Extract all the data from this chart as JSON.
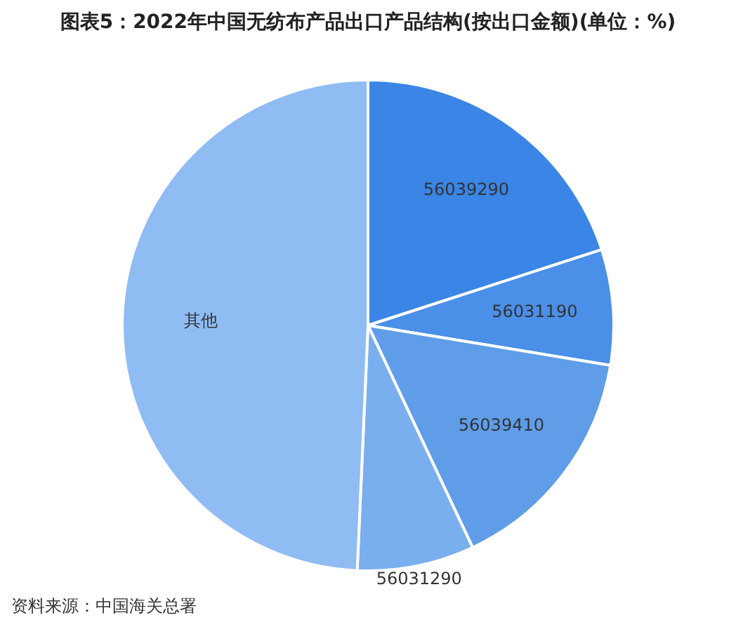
{
  "chart_data": {
    "type": "pie",
    "title": "图表5：2022年中国无纺布产品出口产品结构(按出口金额)(单位：%)",
    "categories": [
      "56039290",
      "56031190",
      "56039410",
      "56031290",
      "其他"
    ],
    "values": [
      20,
      7.6,
      15.4,
      7.7,
      49.3
    ],
    "colors": [
      "#3a85e6",
      "#4a8fe8",
      "#5f9de9",
      "#7aafef",
      "#90bcf4"
    ],
    "legend": false,
    "annotations": [
      "资料来源：中国海关总署"
    ]
  }
}
